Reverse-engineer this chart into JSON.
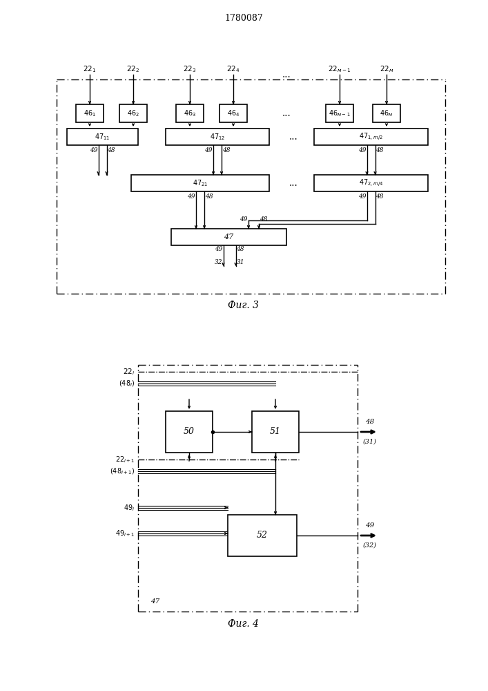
{
  "title": "1780087",
  "fig3_caption": "Фиг. 3",
  "fig4_caption": "Фиг. 4",
  "bg_color": "#ffffff",
  "line_color": "#000000"
}
